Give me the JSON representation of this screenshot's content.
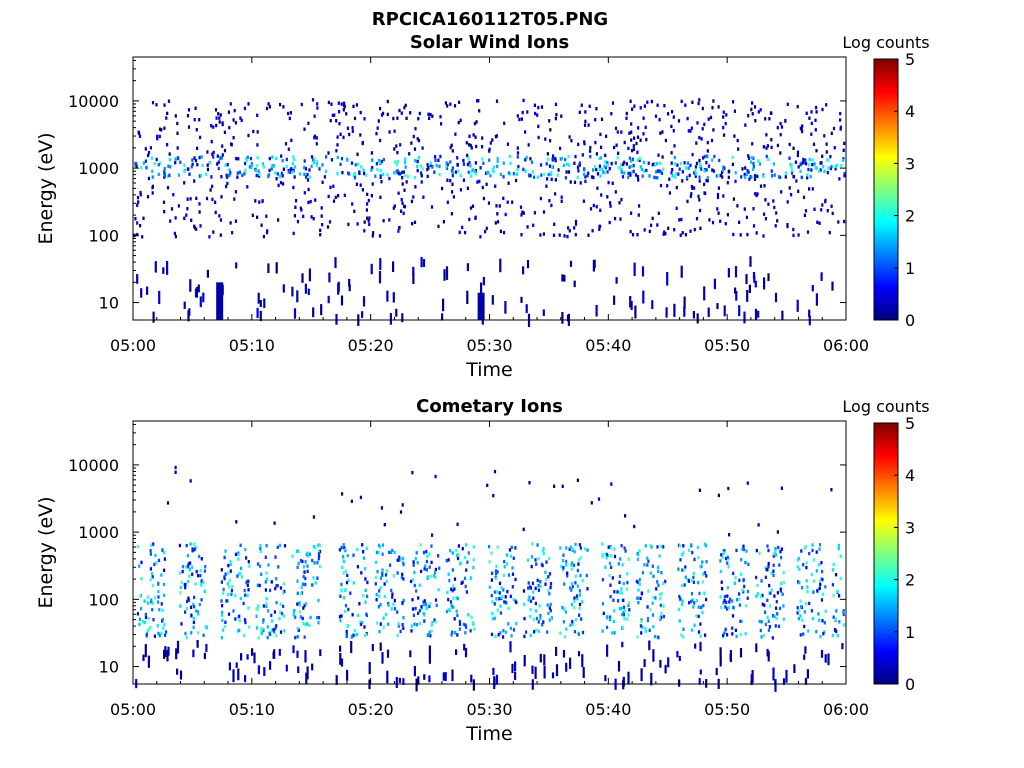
{
  "figure": {
    "title": "RPCICA160112T05.PNG"
  },
  "colors": {
    "colormap": [
      "#00007f",
      "#0000ff",
      "#007fff",
      "#00ffff",
      "#7fff7f",
      "#ffff00",
      "#ff7f00",
      "#ff0000",
      "#7f0000"
    ]
  },
  "chart_data": [
    {
      "type": "heatmap",
      "title": "Solar Wind Ions",
      "xlabel": "Time",
      "ylabel": "Energy (eV)",
      "x_range": [
        "05:00",
        "06:00"
      ],
      "xticks": [
        "05:00",
        "05:10",
        "05:20",
        "05:30",
        "05:40",
        "05:50",
        "06:00"
      ],
      "y_scale": "log",
      "y_range": [
        5.5,
        45000
      ],
      "yticks": [
        10,
        100,
        1000,
        10000
      ],
      "ytick_labels": [
        "10",
        "100",
        "1000",
        "10000"
      ],
      "colorbar": {
        "label": "Log counts",
        "range": [
          0,
          5
        ],
        "ticks": [
          "0",
          "1",
          "2",
          "3",
          "4",
          "5"
        ]
      },
      "bands": [
        {
          "energy_range": [
            800,
            1500
          ],
          "log_counts_range": [
            1,
            2.2
          ],
          "description_free": true
        },
        {
          "energy_range": [
            100,
            12000
          ],
          "log_counts_range": [
            0,
            1
          ],
          "description_free": true
        },
        {
          "energy_range": [
            6,
            60
          ],
          "log_counts_range": [
            0,
            0.5
          ],
          "description_free": true
        }
      ],
      "notable_blocks": [
        {
          "time": "05:07",
          "energy_range": [
            6,
            20
          ],
          "log_counts": 0.2
        },
        {
          "time": "05:29",
          "energy_range": [
            6,
            14
          ],
          "log_counts": 0.2
        }
      ]
    },
    {
      "type": "heatmap",
      "title": "Cometary Ions",
      "xlabel": "Time",
      "ylabel": "Energy (eV)",
      "x_range": [
        "05:00",
        "06:00"
      ],
      "xticks": [
        "05:00",
        "05:10",
        "05:20",
        "05:30",
        "05:40",
        "05:50",
        "06:00"
      ],
      "y_scale": "log",
      "y_range": [
        5.5,
        45000
      ],
      "yticks": [
        10,
        100,
        1000,
        10000
      ],
      "ytick_labels": [
        "10",
        "100",
        "1000",
        "10000"
      ],
      "colorbar": {
        "label": "Log counts",
        "range": [
          0,
          5
        ],
        "ticks": [
          "0",
          "1",
          "2",
          "3",
          "4",
          "5"
        ]
      },
      "bursts_time_min": [
        1.5,
        5,
        8.5,
        11.5,
        14.5,
        18.5,
        21.5,
        24.5,
        27.5,
        31,
        34,
        37,
        40.5,
        43.5,
        47,
        50.5,
        53.5,
        57,
        60
      ],
      "burst_energy_range": [
        20,
        700
      ],
      "burst_log_counts_range": [
        0.5,
        2.3
      ]
    }
  ]
}
